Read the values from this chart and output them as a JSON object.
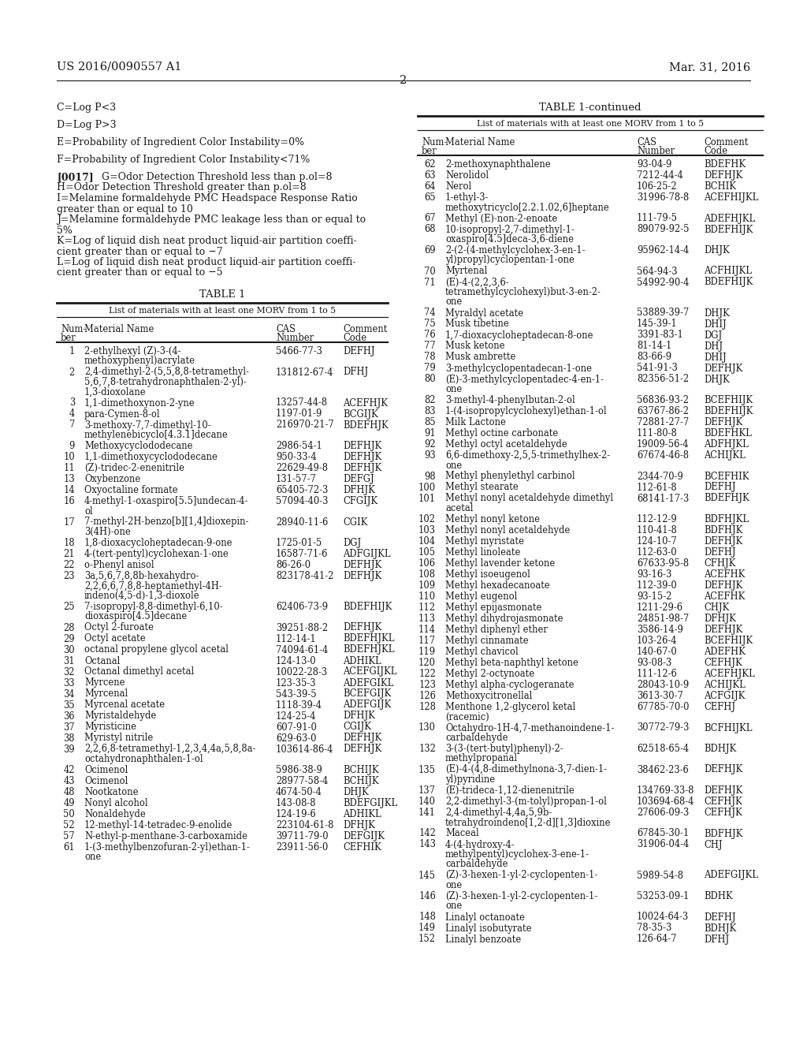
{
  "header_left": "US 2016/0090557 A1",
  "header_right": "Mar. 31, 2016",
  "page_number": "2",
  "bg_color": "#f5f5f0",
  "text_color": "#1a1a1a",
  "table1_title": "TABLE 1",
  "table1_subtitle": "List of materials with at least one MORV from 1 to 5",
  "table1_col_headers": [
    "Num-\nber",
    "Material Name",
    "CAS\nNumber",
    "Comment\nCode"
  ],
  "table1_rows": [
    [
      "1",
      "2-ethylhexyl (Z)-3-(4-\nmethoxyphenyl)acrylate",
      "5466-77-3",
      "DEFHJ"
    ],
    [
      "2",
      "2,4-dimethyl-2-(5,5,8,8-tetramethyl-\n5,6,7,8-tetrahydronaphthalen-2-yl)-\n1,3-dioxolane",
      "131812-67-4",
      "DFHJ"
    ],
    [
      "3",
      "1,1-dimethoxynon-2-yne",
      "13257-44-8",
      "ACEFHJK"
    ],
    [
      "4",
      "para-Cymen-8-ol",
      "1197-01-9",
      "BCGIJK"
    ],
    [
      "7",
      "3-methoxy-7,7-dimethyl-10-\nmethylenebicyclo[4.3.1]decane",
      "216970-21-7",
      "BDEFHJK"
    ],
    [
      "9",
      "Methoxycyclododecane",
      "2986-54-1",
      "DEFHJK"
    ],
    [
      "10",
      "1,1-dimethoxycyclododecane",
      "950-33-4",
      "DEFHJK"
    ],
    [
      "11",
      "(Z)-tridec-2-enenitrile",
      "22629-49-8",
      "DEFHJK"
    ],
    [
      "13",
      "Oxybenzone",
      "131-57-7",
      "DEFGJ"
    ],
    [
      "14",
      "Oxyoctaline formate",
      "65405-72-3",
      "DFHJK"
    ],
    [
      "16",
      "4-methyl-1-oxaspiro[5.5]undecan-4-\nol",
      "57094-40-3",
      "CFGIJK"
    ],
    [
      "17",
      "7-methyl-2H-benzo[b][1,4]dioxepin-\n3(4H)-one",
      "28940-11-6",
      "CGIK"
    ],
    [
      "18",
      "1,8-dioxacycloheptadecan-9-one",
      "1725-01-5",
      "DGJ"
    ],
    [
      "21",
      "4-(tert-pentyl)cyclohexan-1-one",
      "16587-71-6",
      "ADFGIJKL"
    ],
    [
      "22",
      "o-Phenyl anisol",
      "86-26-0",
      "DEFHJK"
    ],
    [
      "23",
      "3a,5,6,7,8,8b-hexahydro-\n2,2,6,6,7,8,8-heptamethyl-4H-\nindeno(4,5-d)-1,3-dioxole",
      "823178-41-2",
      "DEFHJK"
    ],
    [
      "25",
      "7-isopropyl-8,8-dimethyl-6,10-\ndioxaspiro[4.5]decane",
      "62406-73-9",
      "BDEFHIJK"
    ],
    [
      "28",
      "Octyl 2-furoate",
      "39251-88-2",
      "DEFHJK"
    ],
    [
      "29",
      "Octyl acetate",
      "112-14-1",
      "BDEFHJKL"
    ],
    [
      "30",
      "octanal propylene glycol acetal",
      "74094-61-4",
      "BDEFHJKL"
    ],
    [
      "31",
      "Octanal",
      "124-13-0",
      "ADHIKL"
    ],
    [
      "32",
      "Octanal dimethyl acetal",
      "10022-28-3",
      "ACEFGIJKL"
    ],
    [
      "33",
      "Myrcene",
      "123-35-3",
      "ADEFGIKL"
    ],
    [
      "34",
      "Myrcenal",
      "543-39-5",
      "BCEFGIJK"
    ],
    [
      "35",
      "Myrcenal acetate",
      "1118-39-4",
      "ADEFGIJK"
    ],
    [
      "36",
      "Myristaldehyde",
      "124-25-4",
      "DFHJK"
    ],
    [
      "37",
      "Myristicine",
      "607-91-0",
      "CGIJK"
    ],
    [
      "38",
      "Myristyl nitrile",
      "629-63-0",
      "DEFHJK"
    ],
    [
      "39",
      "2,2,6,8-tetramethyl-1,2,3,4,4a,5,8,8a-\noctahydronaphthalen-1-ol",
      "103614-86-4",
      "DEFHJK"
    ],
    [
      "42",
      "Ocimenol",
      "5986-38-9",
      "BCHIJK"
    ],
    [
      "43",
      "Ocimenol",
      "28977-58-4",
      "BCHIJK"
    ],
    [
      "48",
      "Nootkatone",
      "4674-50-4",
      "DHJK"
    ],
    [
      "49",
      "Nonyl alcohol",
      "143-08-8",
      "BDEFGIJKL"
    ],
    [
      "50",
      "Nonaldehyde",
      "124-19-6",
      "ADHIKL"
    ],
    [
      "52",
      "12-methyl-14-tetradec-9-enolide",
      "223104-61-8",
      "DFHJK"
    ],
    [
      "57",
      "N-ethyl-p-menthane-3-carboxamide",
      "39711-79-0",
      "DEFGIJK"
    ],
    [
      "61",
      "1-(3-methylbenzofuran-2-yl)ethan-1-\none",
      "23911-56-0",
      "CEFHIK"
    ]
  ],
  "table2_title": "TABLE 1-continued",
  "table2_subtitle": "List of materials with at least one MORV from 1 to 5",
  "table2_col_headers": [
    "Num-\nber",
    "Material Name",
    "CAS\nNumber",
    "Comment\nCode"
  ],
  "table2_rows": [
    [
      "62",
      "2-methoxynaphthalene",
      "93-04-9",
      "BDEFHK"
    ],
    [
      "63",
      "Nerolidol",
      "7212-44-4",
      "DEFHJK"
    ],
    [
      "64",
      "Nerol",
      "106-25-2",
      "BCHIK"
    ],
    [
      "65",
      "1-ethyl-3-\nmethoxytricyclo[2.2.1.02,6]heptane",
      "31996-78-8",
      "ACEFHIJKL"
    ],
    [
      "67",
      "Methyl (E)-non-2-enoate",
      "111-79-5",
      "ADEFHJKL"
    ],
    [
      "68",
      "10-isopropyl-2,7-dimethyl-1-\noxaspiro[4.5]deca-3,6-diene",
      "89079-92-5",
      "BDEFHIJK"
    ],
    [
      "69",
      "2-(2-(4-methylcyclohex-3-en-1-\nyl)propyl)cyclopentan-1-one",
      "95962-14-4",
      "DHJK"
    ],
    [
      "70",
      "Myrtenal",
      "564-94-3",
      "ACFHIJKL"
    ],
    [
      "71",
      "(E)-4-(2,2,3,6-\ntetramethylcyclohexyl)but-3-en-2-\none",
      "54992-90-4",
      "BDEFHIJK"
    ],
    [
      "74",
      "Myraldyl acetate",
      "53889-39-7",
      "DHJK"
    ],
    [
      "75",
      "Musk tibetine",
      "145-39-1",
      "DHIJ"
    ],
    [
      "76",
      "1,7-dioxacycloheptadecan-8-one",
      "3391-83-1",
      "DGJ"
    ],
    [
      "77",
      "Musk ketone",
      "81-14-1",
      "DHJ"
    ],
    [
      "78",
      "Musk ambrette",
      "83-66-9",
      "DHIJ"
    ],
    [
      "79",
      "3-methylcyclopentadecan-1-one",
      "541-91-3",
      "DEFHJK"
    ],
    [
      "80",
      "(E)-3-methylcyclopentadec-4-en-1-\none",
      "82356-51-2",
      "DHJK"
    ],
    [
      "82",
      "3-methyl-4-phenylbutan-2-ol",
      "56836-93-2",
      "BCEFHIJK"
    ],
    [
      "83",
      "1-(4-isopropylcyclohexyl)ethan-1-ol",
      "63767-86-2",
      "BDEFHIJK"
    ],
    [
      "85",
      "Milk Lactone",
      "72881-27-7",
      "DEFHJK"
    ],
    [
      "91",
      "Methyl octine carbonate",
      "111-80-8",
      "BDEFHKL"
    ],
    [
      "92",
      "Methyl octyl acetaldehyde",
      "19009-56-4",
      "ADFHJKL"
    ],
    [
      "93",
      "6,6-dimethoxy-2,5,5-trimethylhex-2-\none",
      "67674-46-8",
      "ACHIJKL"
    ],
    [
      "98",
      "Methyl phenylethyl carbinol",
      "2344-70-9",
      "BCEFHIK"
    ],
    [
      "100",
      "Methyl stearate",
      "112-61-8",
      "DEFHJ"
    ],
    [
      "101",
      "Methyl nonyl acetaldehyde dimethyl\nacetal",
      "68141-17-3",
      "BDEFHJK"
    ],
    [
      "102",
      "Methyl nonyl ketone",
      "112-12-9",
      "BDFHJKL"
    ],
    [
      "103",
      "Methyl nonyl acetaldehyde",
      "110-41-8",
      "BDFHJK"
    ],
    [
      "104",
      "Methyl myristate",
      "124-10-7",
      "DEFHJK"
    ],
    [
      "105",
      "Methyl linoleate",
      "112-63-0",
      "DEFHJ"
    ],
    [
      "106",
      "Methyl lavender ketone",
      "67633-95-8",
      "CFHJK"
    ],
    [
      "108",
      "Methyl isoeugenol",
      "93-16-3",
      "ACEFHK"
    ],
    [
      "109",
      "Methyl hexadecanoate",
      "112-39-0",
      "DEFHJK"
    ],
    [
      "110",
      "Methyl eugenol",
      "93-15-2",
      "ACEFHK"
    ],
    [
      "112",
      "Methyl epijasmonate",
      "1211-29-6",
      "CHJK"
    ],
    [
      "113",
      "Methyl dihydrojasmonate",
      "24851-98-7",
      "DFHJK"
    ],
    [
      "114",
      "Methyl diphenyl ether",
      "3586-14-9",
      "DEFHJK"
    ],
    [
      "117",
      "Methyl cinnamate",
      "103-26-4",
      "BCEFHIJK"
    ],
    [
      "119",
      "Methyl chavicol",
      "140-67-0",
      "ADEFHK"
    ],
    [
      "120",
      "Methyl beta-naphthyl ketone",
      "93-08-3",
      "CEFHJK"
    ],
    [
      "122",
      "Methyl 2-octynoate",
      "111-12-6",
      "ACEFHJKL"
    ],
    [
      "123",
      "Methyl alpha-cyclogeranate",
      "28043-10-9",
      "ACHIJKL"
    ],
    [
      "126",
      "Methoxycitronellal",
      "3613-30-7",
      "ACFGIJK"
    ],
    [
      "128",
      "Menthone 1,2-glycerol ketal\n(racemic)",
      "67785-70-0",
      "CEFHJ"
    ],
    [
      "130",
      "Octahydro-1H-4,7-methanoindene-1-\ncarbaldehyde",
      "30772-79-3",
      "BCFHIJKL"
    ],
    [
      "132",
      "3-(3-(tert-butyl)phenyl)-2-\nmethylpropanal",
      "62518-65-4",
      "BDHJK"
    ],
    [
      "135",
      "(E)-4-(4,8-dimethylnona-3,7-dien-1-\nyl)pyridine",
      "38462-23-6",
      "DEFHJK"
    ],
    [
      "137",
      "(E)-trideca-1,12-dienenitrile",
      "134769-33-8",
      "DEFHJK"
    ],
    [
      "140",
      "2,2-dimethyl-3-(m-tolyl)propan-1-ol",
      "103694-68-4",
      "CEFHJK"
    ],
    [
      "141",
      "2,4-dimethyl-4,4a,5,9b-\ntetrahydroindeno[1,2-d][1,3]dioxine",
      "27606-09-3",
      "CEFHJK"
    ],
    [
      "142",
      "Maceal",
      "67845-30-1",
      "BDFHJK"
    ],
    [
      "143",
      "4-(4-hydroxy-4-\nmethylpentyl)cyclohex-3-ene-1-\ncarbaldehyde",
      "31906-04-4",
      "CHJ"
    ],
    [
      "145",
      "(Z)-3-hexen-1-yl-2-cyclopenten-1-\none",
      "5989-54-8",
      "ADEFGIJKL"
    ],
    [
      "146",
      "(Z)-3-hexen-1-yl-2-cyclopenten-1-\none",
      "53253-09-1",
      "BDHK"
    ],
    [
      "148",
      "Linalyl octanoate",
      "10024-64-3",
      "DEFHJ"
    ],
    [
      "149",
      "Linalyl isobutyrate",
      "78-35-3",
      "BDHJK"
    ],
    [
      "152",
      "Linalyl benzoate",
      "126-64-7",
      "DFHJ"
    ]
  ]
}
